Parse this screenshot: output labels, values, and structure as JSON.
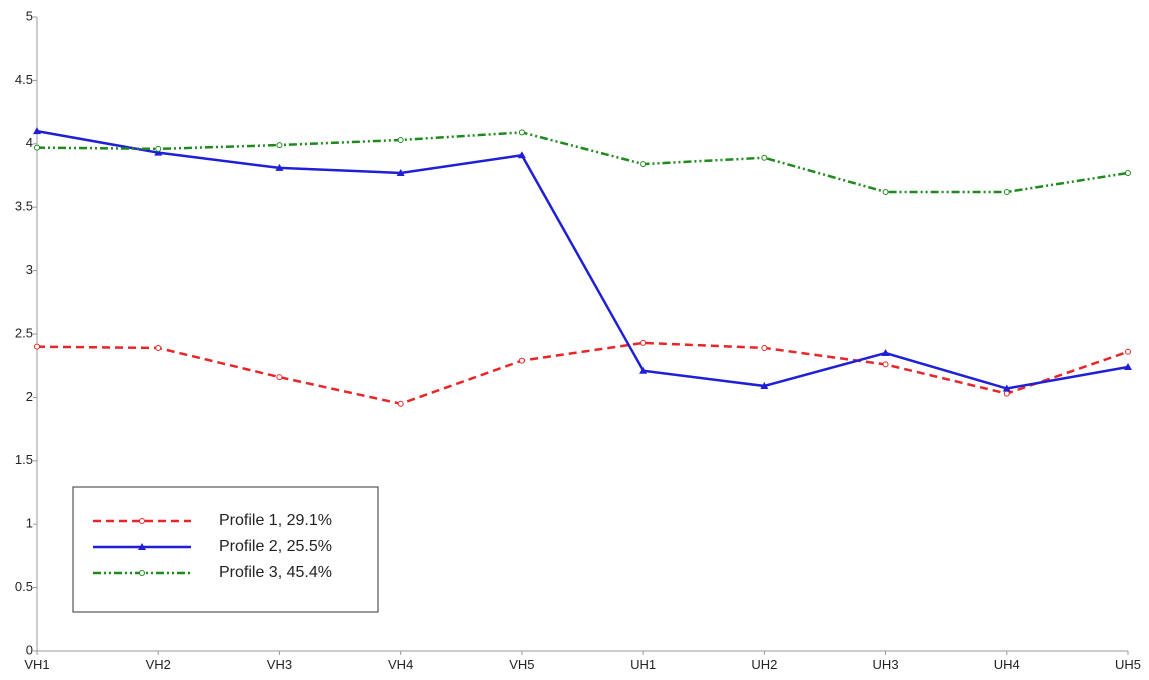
{
  "chart_data": {
    "type": "line",
    "categories": [
      "VH1",
      "VH2",
      "VH3",
      "VH4",
      "VH5",
      "UH1",
      "UH2",
      "UH3",
      "UH4",
      "UH5"
    ],
    "series": [
      {
        "name": "Profile 1, 29.1%",
        "color": "#e8262a",
        "dash": "8,5",
        "marker": "circle",
        "values": [
          2.4,
          2.39,
          2.16,
          1.95,
          2.29,
          2.43,
          2.39,
          2.26,
          2.03,
          2.36
        ]
      },
      {
        "name": "Profile 2, 25.5%",
        "color": "#1f1fd6",
        "dash": "none",
        "marker": "triangle",
        "values": [
          4.1,
          3.93,
          3.81,
          3.77,
          3.91,
          2.21,
          2.09,
          2.35,
          2.07,
          2.24
        ]
      },
      {
        "name": "Profile 3, 45.4%",
        "color": "#1e8a1e",
        "dash": "8,3,2,3,2,3",
        "marker": "circle",
        "values": [
          3.97,
          3.96,
          3.99,
          4.03,
          4.09,
          3.84,
          3.89,
          3.62,
          3.62,
          3.77
        ]
      }
    ],
    "ylim": [
      0,
      5
    ],
    "yticks": [
      0,
      0.5,
      1,
      1.5,
      2,
      2.5,
      3,
      3.5,
      4,
      4.5,
      5
    ],
    "grid": false,
    "legend": "lower left"
  }
}
